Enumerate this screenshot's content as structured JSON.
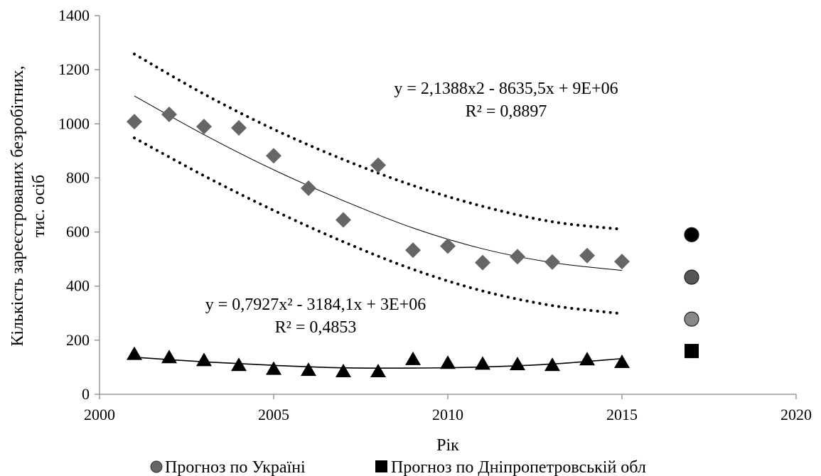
{
  "chart_data": {
    "type": "scatter",
    "xlabel": "Рік",
    "ylabel": "Кількість зареєстрованих безробітних,",
    "ylabel2": "тис. осіб",
    "xlim": [
      2000,
      2020
    ],
    "ylim": [
      0,
      1400
    ],
    "xticks": [
      2000,
      2005,
      2010,
      2015,
      2020
    ],
    "yticks": [
      0,
      200,
      400,
      600,
      800,
      1000,
      1200,
      1400
    ],
    "grid": false,
    "legend_position": "bottom",
    "series": [
      {
        "key": "ukraine",
        "name": "Прогноз по Україні",
        "marker": "diamond",
        "color": "#666666",
        "x": [
          2001,
          2002,
          2003,
          2004,
          2005,
          2006,
          2007,
          2008,
          2009,
          2010,
          2011,
          2012,
          2013,
          2014,
          2015
        ],
        "y": [
          1008,
          1035,
          990,
          985,
          882,
          762,
          645,
          847,
          533,
          548,
          487,
          509,
          489,
          513,
          491
        ]
      },
      {
        "key": "dnipro",
        "name": "Прогноз по Дніпропетровській обл",
        "marker": "triangle",
        "color": "#000000",
        "x": [
          2001,
          2002,
          2003,
          2004,
          2005,
          2006,
          2007,
          2008,
          2009,
          2010,
          2011,
          2012,
          2013,
          2014,
          2015
        ],
        "y": [
          147,
          135,
          124,
          106,
          92,
          88,
          83,
          83,
          128,
          114,
          111,
          109,
          106,
          127,
          117
        ]
      }
    ],
    "forecast_points": [
      {
        "x": 2017,
        "y": 590,
        "marker": "circle",
        "color": "#000000"
      },
      {
        "x": 2017,
        "y": 433,
        "marker": "circle",
        "color": "#555555"
      },
      {
        "x": 2017,
        "y": 278,
        "marker": "circle",
        "color": "#888888"
      },
      {
        "x": 2017,
        "y": 160,
        "marker": "square",
        "color": "#000000"
      }
    ],
    "trendlines": {
      "ukraine": {
        "x": [
          2001,
          2003,
          2005,
          2007,
          2009,
          2011,
          2013,
          2015
        ],
        "y": [
          1103,
          960,
          830,
          716,
          615,
          538,
          487,
          458
        ]
      },
      "ukraine_upper": {
        "x": [
          2001,
          2003,
          2005,
          2007,
          2009,
          2011,
          2013,
          2015
        ],
        "y": [
          1258,
          1110,
          980,
          868,
          772,
          695,
          638,
          610
        ]
      },
      "ukraine_lower": {
        "x": [
          2001,
          2003,
          2005,
          2007,
          2009,
          2011,
          2013,
          2015
        ],
        "y": [
          948,
          808,
          680,
          564,
          462,
          382,
          328,
          298
        ]
      },
      "dnipro": {
        "x": [
          2001,
          2003,
          2005,
          2007,
          2009,
          2011,
          2013,
          2015
        ],
        "y": [
          137,
          120,
          107,
          98,
          97,
          101,
          112,
          132
        ]
      }
    },
    "annotations": {
      "eq1": "y = 2,1388x2  - 8635,5x + 9E+06",
      "r2_1": "R² = 0,8897",
      "eq2": "y = 0,7927x² - 3184,1x + 3E+06",
      "r2_2": "R² = 0,4853"
    }
  }
}
